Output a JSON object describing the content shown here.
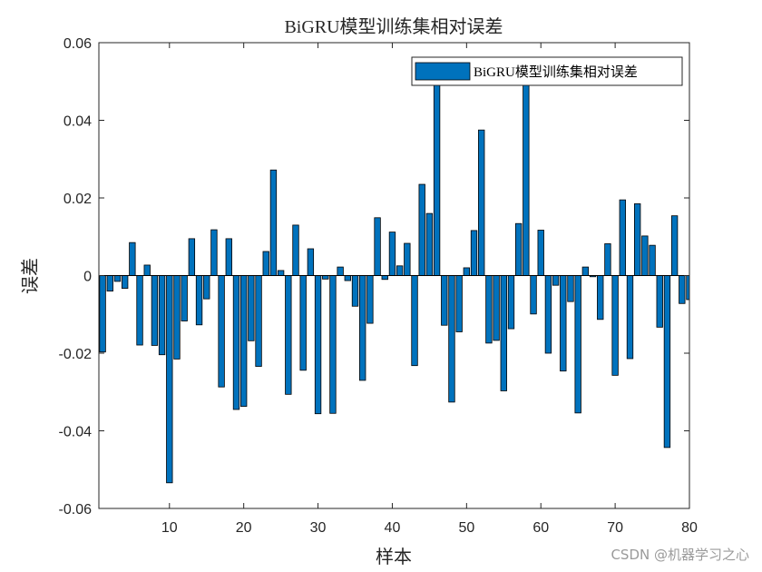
{
  "chart_data": {
    "type": "bar",
    "title": "BiGRU模型训练集相对误差",
    "xlabel": "样本",
    "ylabel": "误差",
    "legend": {
      "label": "BiGRU模型训练集相对误差",
      "position": "top-right"
    },
    "xlim": [
      0.5,
      80
    ],
    "ylim": [
      -0.06,
      0.06
    ],
    "xticks": [
      10,
      20,
      30,
      40,
      50,
      60,
      70,
      80
    ],
    "yticks": [
      -0.06,
      -0.04,
      -0.02,
      0,
      0.02,
      0.04,
      0.06
    ],
    "ytick_labels": [
      "-0.06",
      "-0.04",
      "-0.02",
      "0",
      "0.02",
      "0.04",
      "0.06"
    ],
    "grid": false,
    "bar_color": "#0072bd",
    "x": [
      1,
      2,
      3,
      4,
      5,
      6,
      7,
      8,
      9,
      10,
      11,
      12,
      13,
      14,
      15,
      16,
      17,
      18,
      19,
      20,
      21,
      22,
      23,
      24,
      25,
      26,
      27,
      28,
      29,
      30,
      31,
      32,
      33,
      34,
      35,
      36,
      37,
      38,
      39,
      40,
      41,
      42,
      43,
      44,
      45,
      46,
      47,
      48,
      49,
      50,
      51,
      52,
      53,
      54,
      55,
      56,
      57,
      58,
      59,
      60,
      61,
      62,
      63,
      64,
      65,
      66,
      67,
      68,
      69,
      70,
      71,
      72,
      73,
      74,
      75,
      76,
      77,
      78,
      79,
      80
    ],
    "values": [
      -0.0197,
      -0.004,
      -0.0015,
      -0.0033,
      0.0085,
      -0.0179,
      0.0027,
      -0.018,
      -0.0204,
      -0.0534,
      -0.0215,
      -0.0117,
      0.0095,
      -0.0127,
      -0.006,
      0.0118,
      -0.0287,
      0.0095,
      -0.0345,
      -0.0337,
      -0.0168,
      -0.0234,
      0.0062,
      0.0272,
      0.0013,
      -0.0306,
      0.013,
      -0.0244,
      0.0069,
      -0.0356,
      -0.0009,
      -0.0355,
      0.0022,
      -0.0013,
      -0.0079,
      -0.027,
      -0.0123,
      0.0149,
      -0.001,
      0.0112,
      0.0025,
      0.0083,
      -0.0232,
      0.0235,
      0.016,
      0.05,
      -0.0128,
      -0.0326,
      -0.0145,
      0.002,
      0.0116,
      0.0375,
      -0.0174,
      -0.0167,
      -0.0297,
      -0.0137,
      0.0134,
      0.05,
      -0.0099,
      0.0117,
      -0.02,
      -0.0025,
      -0.0246,
      -0.0067,
      -0.0354,
      0.0022,
      -0.0003,
      -0.0113,
      0.0082,
      -0.0257,
      0.0195,
      -0.0214,
      0.0185,
      0.0102,
      0.0078,
      -0.0133,
      -0.0443,
      0.0154,
      -0.0072,
      -0.0062
    ]
  },
  "watermark": "CSDN @机器学习之心"
}
